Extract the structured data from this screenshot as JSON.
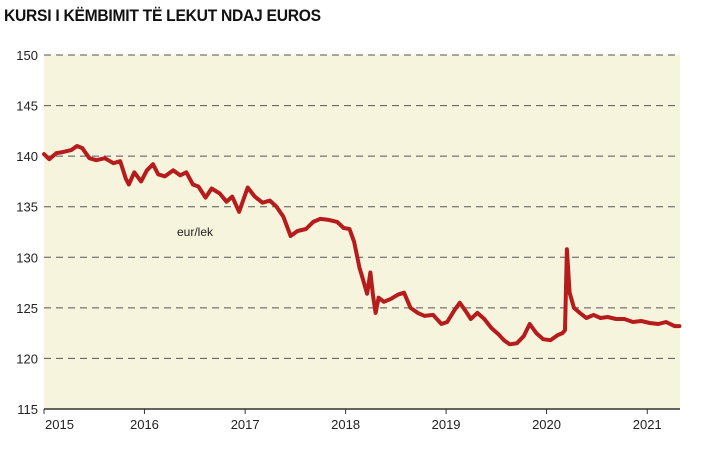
{
  "chart_data": {
    "type": "line",
    "title": "KURSI I KËMBIMIT TË LEKUT NDAJ EUROS",
    "series_label": "eur/lek",
    "xlabel": "",
    "ylabel": "",
    "x_ticks": [
      "2015",
      "2016",
      "2017",
      "2018",
      "2019",
      "2020",
      "2021"
    ],
    "y_ticks": [
      115,
      120,
      125,
      130,
      135,
      140,
      145,
      150
    ],
    "xlim": [
      "2015-01-01",
      "2021-04-30"
    ],
    "ylim": [
      115,
      150
    ],
    "grid": "horizontal dashed",
    "colors": {
      "plot_bg": "#f6f4dd",
      "page_bg": "#ffffff",
      "line": "#b71c1c",
      "grid": "#555555"
    },
    "series": [
      {
        "name": "eur/lek",
        "x": [
          "2015-01-01",
          "2015-01-20",
          "2015-02-15",
          "2015-03-10",
          "2015-04-10",
          "2015-05-01",
          "2015-05-20",
          "2015-06-15",
          "2015-07-10",
          "2015-08-10",
          "2015-09-10",
          "2015-10-05",
          "2015-10-25",
          "2015-11-05",
          "2015-11-25",
          "2015-12-20",
          "2016-01-10",
          "2016-02-01",
          "2016-02-20",
          "2016-03-15",
          "2016-04-15",
          "2016-05-10",
          "2016-06-01",
          "2016-06-25",
          "2016-07-15",
          "2016-08-10",
          "2016-09-01",
          "2016-10-01",
          "2016-10-25",
          "2016-11-15",
          "2016-12-10",
          "2017-01-10",
          "2017-02-05",
          "2017-03-05",
          "2017-04-01",
          "2017-04-25",
          "2017-05-20",
          "2017-06-15",
          "2017-07-10",
          "2017-08-10",
          "2017-09-05",
          "2017-10-01",
          "2017-11-01",
          "2017-12-01",
          "2017-12-25",
          "2018-01-15",
          "2018-02-01",
          "2018-02-20",
          "2018-03-05",
          "2018-03-20",
          "2018-04-01",
          "2018-04-10",
          "2018-04-20",
          "2018-05-01",
          "2018-05-20",
          "2018-06-15",
          "2018-07-10",
          "2018-08-01",
          "2018-08-25",
          "2018-09-20",
          "2018-10-15",
          "2018-11-15",
          "2018-12-15",
          "2019-01-05",
          "2019-02-01",
          "2019-02-20",
          "2019-03-15",
          "2019-04-01",
          "2019-04-25",
          "2019-05-20",
          "2019-06-15",
          "2019-07-10",
          "2019-07-30",
          "2019-08-20",
          "2019-09-15",
          "2019-10-10",
          "2019-11-01",
          "2019-11-25",
          "2019-12-20",
          "2020-01-15",
          "2020-02-10",
          "2020-02-28",
          "2020-03-08",
          "2020-03-15",
          "2020-03-25",
          "2020-04-10",
          "2020-05-01",
          "2020-05-25",
          "2020-06-20",
          "2020-07-15",
          "2020-08-10",
          "2020-09-10",
          "2020-10-10",
          "2020-11-10",
          "2020-12-10",
          "2021-01-10",
          "2021-02-10",
          "2021-03-10",
          "2021-04-10",
          "2021-04-28"
        ],
        "y": [
          140.2,
          139.7,
          140.3,
          140.4,
          140.6,
          141.0,
          140.8,
          139.8,
          139.6,
          139.8,
          139.3,
          139.5,
          137.8,
          137.2,
          138.4,
          137.5,
          138.6,
          139.2,
          138.2,
          138.0,
          138.6,
          138.1,
          138.4,
          137.2,
          137.0,
          135.9,
          136.8,
          136.3,
          135.5,
          136.0,
          134.5,
          136.9,
          136.0,
          135.4,
          135.6,
          135.0,
          134.0,
          132.1,
          132.6,
          132.8,
          133.5,
          133.8,
          133.7,
          133.5,
          132.9,
          132.8,
          131.5,
          129.0,
          127.8,
          126.4,
          128.5,
          126.3,
          124.5,
          126.0,
          125.6,
          125.9,
          126.3,
          126.5,
          125.0,
          124.5,
          124.2,
          124.3,
          123.4,
          123.6,
          124.8,
          125.5,
          124.6,
          123.9,
          124.5,
          123.9,
          123.0,
          122.4,
          121.8,
          121.4,
          121.5,
          122.2,
          123.4,
          122.5,
          121.9,
          121.8,
          122.3,
          122.5,
          122.8,
          130.8,
          126.5,
          125.0,
          124.5,
          124.0,
          124.3,
          124.0,
          124.1,
          123.9,
          123.9,
          123.6,
          123.7,
          123.5,
          123.4,
          123.6,
          123.2,
          123.2
        ]
      }
    ]
  }
}
